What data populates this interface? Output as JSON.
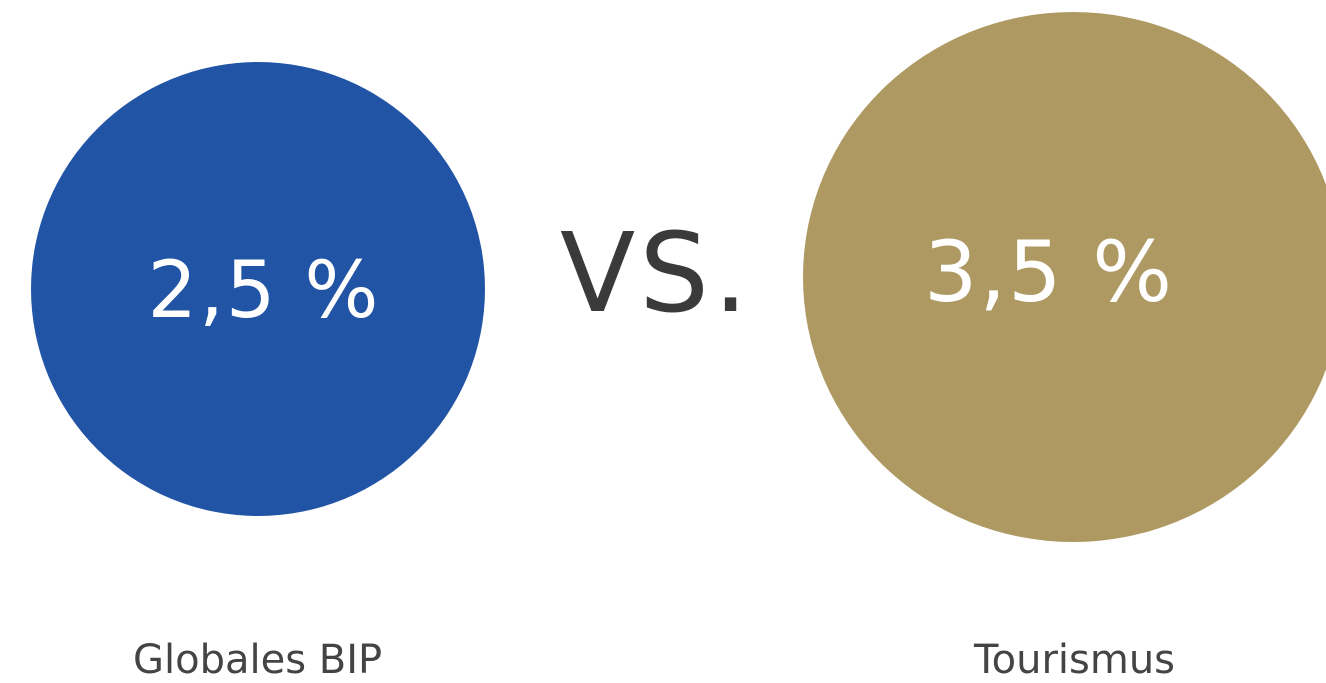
{
  "left": {
    "value": "2,5 %",
    "caption": "Globales BIP",
    "color": "#2254a6"
  },
  "separator": {
    "label": "VS."
  },
  "right": {
    "value": "3,5 %",
    "caption": "Tourismus",
    "color": "#ae9963"
  }
}
